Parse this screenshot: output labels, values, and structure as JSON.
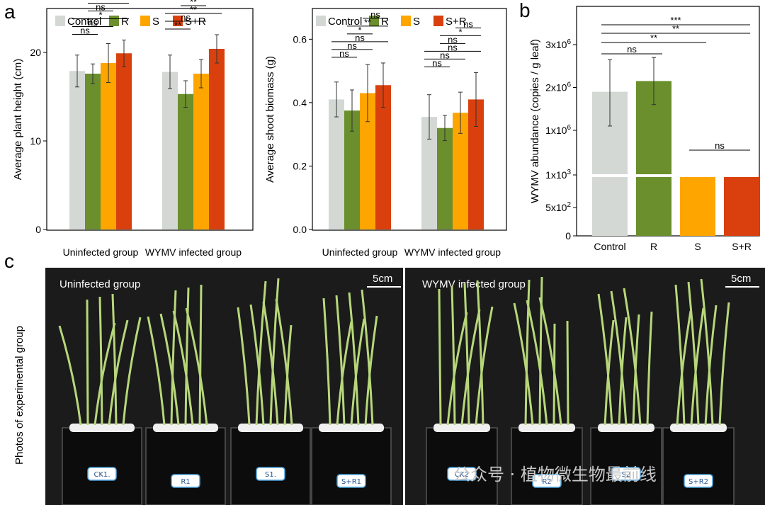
{
  "panel_labels": {
    "a": "a",
    "b": "b",
    "c": "c"
  },
  "colors": {
    "Control": "#d3d8d5",
    "R": "#6a8f2c",
    "S": "#ffa500",
    "S+R": "#d9400e"
  },
  "chart_data": [
    {
      "id": "height",
      "type": "bar",
      "ylabel": "Average plant height (cm)",
      "ylim": [
        0,
        24
      ],
      "yticks": [
        0,
        10,
        20
      ],
      "categories": [
        "Uninfected group",
        "WYMV infected group"
      ],
      "legend": [
        "Control",
        "R",
        "S",
        "S+R"
      ],
      "series": [
        {
          "name": "Control",
          "values": [
            17.9,
            17.8
          ],
          "errors": [
            1.8,
            1.9
          ]
        },
        {
          "name": "R",
          "values": [
            17.6,
            15.3
          ],
          "errors": [
            1.1,
            1.5
          ]
        },
        {
          "name": "S",
          "values": [
            18.8,
            17.6
          ],
          "errors": [
            2.2,
            1.6
          ]
        },
        {
          "name": "S+R",
          "values": [
            19.9,
            20.4
          ],
          "errors": [
            1.5,
            1.6
          ]
        }
      ],
      "sig": [
        [
          {
            "a": 0,
            "b": 1,
            "label": "ns"
          },
          {
            "a": 0,
            "b": 2,
            "label": "ns"
          },
          {
            "a": 0,
            "b": 3,
            "label": "*"
          },
          {
            "a": 1,
            "b": 2,
            "label": "ns"
          },
          {
            "a": 1,
            "b": 3,
            "label": "**"
          },
          {
            "a": 2,
            "b": 3,
            "label": "ns"
          }
        ],
        [
          {
            "a": 0,
            "b": 1,
            "label": "**"
          },
          {
            "a": 0,
            "b": 2,
            "label": "ns"
          },
          {
            "a": 0,
            "b": 3,
            "label": "**"
          },
          {
            "a": 1,
            "b": 2,
            "label": "**"
          },
          {
            "a": 1,
            "b": 3,
            "label": "***"
          },
          {
            "a": 2,
            "b": 3,
            "label": "**"
          }
        ]
      ]
    },
    {
      "id": "biomass",
      "type": "bar",
      "ylabel": "Average shoot biomass (g)",
      "ylim": [
        0,
        0.67
      ],
      "yticks": [
        "0.0",
        "0.2",
        "0.4",
        "0.6"
      ],
      "categories": [
        "Uninfected group",
        "WYMV infected group"
      ],
      "legend": [
        "Control",
        "R",
        "S",
        "S+R"
      ],
      "series": [
        {
          "name": "Control",
          "values": [
            0.41,
            0.355
          ],
          "errors": [
            0.055,
            0.07
          ]
        },
        {
          "name": "R",
          "values": [
            0.375,
            0.32
          ],
          "errors": [
            0.065,
            0.04
          ]
        },
        {
          "name": "S",
          "values": [
            0.43,
            0.368
          ],
          "errors": [
            0.09,
            0.065
          ]
        },
        {
          "name": "S+R",
          "values": [
            0.455,
            0.41
          ],
          "errors": [
            0.07,
            0.085
          ]
        }
      ],
      "sig": [
        [
          {
            "a": 0,
            "b": 1,
            "label": "ns"
          },
          {
            "a": 0,
            "b": 2,
            "label": "ns"
          },
          {
            "a": 0,
            "b": 3,
            "label": "ns"
          },
          {
            "a": 1,
            "b": 2,
            "label": "*"
          },
          {
            "a": 1,
            "b": 3,
            "label": "**"
          },
          {
            "a": 2,
            "b": 3,
            "label": "ns"
          }
        ],
        [
          {
            "a": 0,
            "b": 1,
            "label": "ns"
          },
          {
            "a": 0,
            "b": 2,
            "label": "ns"
          },
          {
            "a": 0,
            "b": 3,
            "label": "ns"
          },
          {
            "a": 1,
            "b": 2,
            "label": "ns"
          },
          {
            "a": 1,
            "b": 3,
            "label": "*"
          },
          {
            "a": 2,
            "b": 3,
            "label": "ns"
          }
        ]
      ]
    },
    {
      "id": "wymv",
      "type": "bar",
      "ylabel": "WYMV abundance (copies / g leaf)",
      "categories": [
        "Control",
        "R",
        "S",
        "S+R"
      ],
      "yticks": [
        {
          "label": "0",
          "base": "0",
          "exp": ""
        },
        {
          "label": "5x10^2",
          "base": "5x10",
          "exp": "2"
        },
        {
          "label": "1x10^3",
          "base": "1x10",
          "exp": "3"
        },
        {
          "label": "1x10^6",
          "base": "1x10",
          "exp": "6"
        },
        {
          "label": "2x10^6",
          "base": "2x10",
          "exp": "6"
        },
        {
          "label": "3x10^6",
          "base": "3x10",
          "exp": "6"
        }
      ],
      "values": [
        1900000,
        2150000,
        1300,
        1100
      ],
      "errors": [
        {
          "lo": 1100000,
          "hi": 2650000
        },
        {
          "lo": 1600000,
          "hi": 2700000
        },
        {
          "lo": 1200,
          "hi": 1400
        },
        {
          "lo": 1080,
          "hi": 1120
        }
      ],
      "axis_break_after": "1x10^3",
      "sig": [
        {
          "a": 0,
          "b": 1,
          "label": "ns"
        },
        {
          "a": 0,
          "b": 2,
          "label": "**"
        },
        {
          "a": 0,
          "b": 3,
          "label": "**"
        },
        {
          "a": 0,
          "b": 3,
          "label": "***"
        },
        {
          "a": 2,
          "b": 3,
          "label": "ns"
        }
      ]
    }
  ],
  "photo": {
    "side_label": "Photos of experimental group",
    "panels": [
      {
        "title": "Uninfected  group",
        "scale": "5cm",
        "tags": [
          "CK1.",
          "R1",
          "S1.",
          "S+R1"
        ]
      },
      {
        "title": "WYMV infected  group",
        "scale": "5cm",
        "tags": [
          "CK2",
          "R2",
          "S2",
          "S+R2"
        ]
      }
    ],
    "watermark": "公众号 · 植物微生物最前线"
  }
}
